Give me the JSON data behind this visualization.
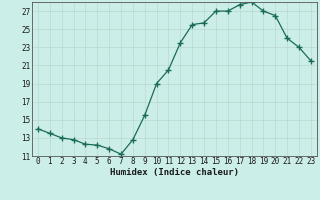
{
  "x": [
    0,
    1,
    2,
    3,
    4,
    5,
    6,
    7,
    8,
    9,
    10,
    11,
    12,
    13,
    14,
    15,
    16,
    17,
    18,
    19,
    20,
    21,
    22,
    23
  ],
  "y": [
    14.0,
    13.5,
    13.0,
    12.8,
    12.3,
    12.2,
    11.8,
    11.2,
    12.8,
    15.5,
    19.0,
    20.5,
    23.5,
    25.5,
    25.7,
    27.0,
    27.0,
    27.7,
    28.0,
    27.0,
    26.5,
    24.0,
    23.0,
    21.5
  ],
  "xlabel": "Humidex (Indice chaleur)",
  "ylim": [
    11,
    28
  ],
  "xlim": [
    -0.5,
    23.5
  ],
  "yticks": [
    11,
    13,
    15,
    17,
    19,
    21,
    23,
    25,
    27
  ],
  "xticks": [
    0,
    1,
    2,
    3,
    4,
    5,
    6,
    7,
    8,
    9,
    10,
    11,
    12,
    13,
    14,
    15,
    16,
    17,
    18,
    19,
    20,
    21,
    22,
    23
  ],
  "line_color": "#1a6b5a",
  "marker": "+",
  "marker_size": 4,
  "bg_color": "#cceee8",
  "grid_major_color": "#b8d8d0",
  "grid_minor_color": "#d4ecec",
  "axis_color": "#555555",
  "tick_fontsize": 5.5,
  "xlabel_fontsize": 6.5
}
